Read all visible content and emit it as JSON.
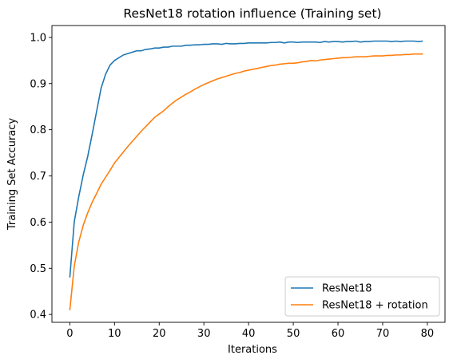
{
  "chart_data": {
    "type": "line",
    "title": "ResNet18 rotation influence (Training set)",
    "xlabel": "Iterations",
    "ylabel": "Training Set Accuracy",
    "xlim": [
      -4,
      83.95
    ],
    "ylim": [
      0.383,
      1.0257
    ],
    "xticks": [
      0,
      10,
      20,
      30,
      40,
      50,
      60,
      70,
      80
    ],
    "yticks": [
      0.4,
      0.5,
      0.6,
      0.7,
      0.8,
      0.9,
      1.0
    ],
    "ytick_labels": [
      "0.4",
      "0.5",
      "0.6",
      "0.7",
      "0.8",
      "0.9",
      "1.0"
    ],
    "grid": false,
    "legend": "lower-right",
    "x": [
      0,
      1,
      2,
      3,
      4,
      5,
      6,
      7,
      8,
      9,
      10,
      11,
      12,
      13,
      14,
      15,
      16,
      17,
      18,
      19,
      20,
      21,
      22,
      23,
      24,
      25,
      26,
      27,
      28,
      29,
      30,
      31,
      32,
      33,
      34,
      35,
      36,
      37,
      38,
      39,
      40,
      41,
      42,
      43,
      44,
      45,
      46,
      47,
      48,
      49,
      50,
      51,
      52,
      53,
      54,
      55,
      56,
      57,
      58,
      59,
      60,
      61,
      62,
      63,
      64,
      65,
      66,
      67,
      68,
      69,
      70,
      71,
      72,
      73,
      74,
      75,
      76,
      77,
      78,
      79
    ],
    "series": [
      {
        "name": "ResNet18",
        "color": "#1f77b4",
        "values": [
          0.48,
          0.601,
          0.655,
          0.702,
          0.742,
          0.79,
          0.84,
          0.89,
          0.92,
          0.94,
          0.95,
          0.956,
          0.962,
          0.965,
          0.968,
          0.971,
          0.971,
          0.974,
          0.975,
          0.977,
          0.977,
          0.979,
          0.979,
          0.981,
          0.981,
          0.981,
          0.983,
          0.983,
          0.984,
          0.984,
          0.985,
          0.985,
          0.986,
          0.986,
          0.985,
          0.987,
          0.986,
          0.986,
          0.987,
          0.987,
          0.988,
          0.988,
          0.988,
          0.988,
          0.988,
          0.989,
          0.989,
          0.99,
          0.988,
          0.99,
          0.99,
          0.989,
          0.99,
          0.99,
          0.99,
          0.99,
          0.989,
          0.991,
          0.99,
          0.991,
          0.991,
          0.99,
          0.991,
          0.991,
          0.992,
          0.99,
          0.991,
          0.991,
          0.992,
          0.992,
          0.992,
          0.992,
          0.991,
          0.992,
          0.991,
          0.992,
          0.992,
          0.992,
          0.991,
          0.992
        ]
      },
      {
        "name": "ResNet18 + rotation",
        "color": "#ff7f0e",
        "values": [
          0.409,
          0.505,
          0.557,
          0.593,
          0.62,
          0.643,
          0.662,
          0.682,
          0.697,
          0.712,
          0.728,
          0.74,
          0.752,
          0.764,
          0.775,
          0.786,
          0.797,
          0.807,
          0.817,
          0.827,
          0.834,
          0.841,
          0.85,
          0.858,
          0.865,
          0.871,
          0.877,
          0.882,
          0.888,
          0.893,
          0.898,
          0.902,
          0.906,
          0.91,
          0.913,
          0.916,
          0.919,
          0.922,
          0.924,
          0.927,
          0.929,
          0.931,
          0.933,
          0.935,
          0.937,
          0.939,
          0.94,
          0.942,
          0.943,
          0.944,
          0.944,
          0.945,
          0.947,
          0.948,
          0.95,
          0.949,
          0.951,
          0.952,
          0.953,
          0.954,
          0.955,
          0.956,
          0.956,
          0.957,
          0.958,
          0.958,
          0.958,
          0.959,
          0.96,
          0.96,
          0.96,
          0.961,
          0.961,
          0.962,
          0.962,
          0.963,
          0.963,
          0.964,
          0.964,
          0.964
        ]
      }
    ]
  }
}
